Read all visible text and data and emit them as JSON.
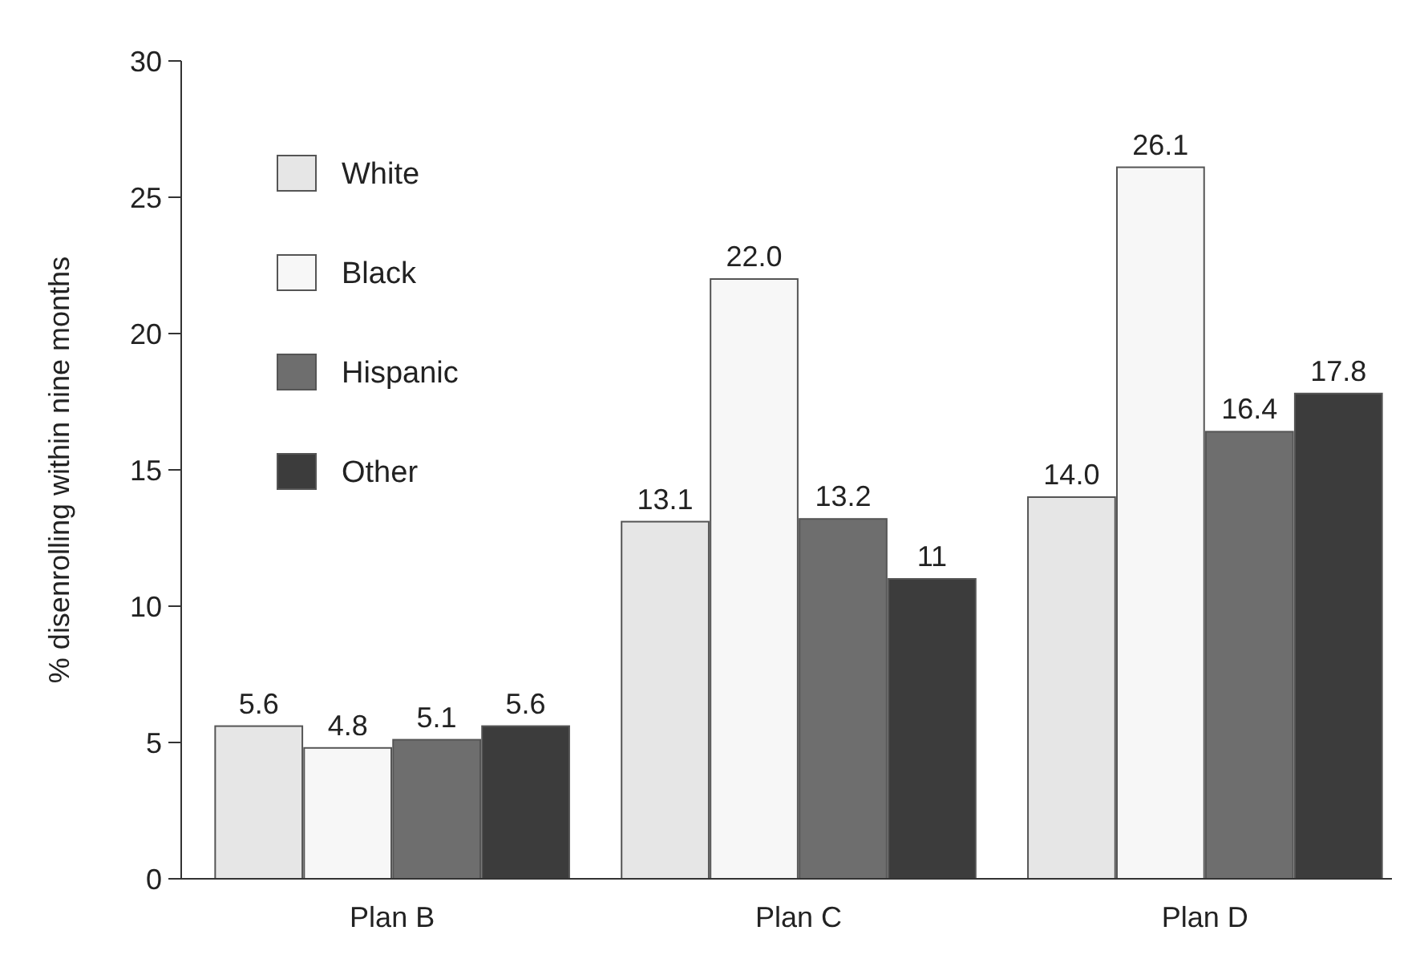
{
  "chart_data": {
    "type": "bar",
    "ylabel": "% disenrolling within nine months",
    "categories": [
      "Plan B",
      "Plan C",
      "Plan D"
    ],
    "series": [
      {
        "name": "White",
        "color": "#e6e6e6",
        "values": [
          5.6,
          13.1,
          14.0
        ],
        "value_labels": [
          "5.6",
          "13.1",
          "14.0"
        ]
      },
      {
        "name": "Black",
        "color": "#f7f7f7",
        "values": [
          4.8,
          22.0,
          26.1
        ],
        "value_labels": [
          "4.8",
          "22.0",
          "26.1"
        ]
      },
      {
        "name": "Hispanic",
        "color": "#6e6e6e",
        "values": [
          5.1,
          13.2,
          16.4
        ],
        "value_labels": [
          "5.1",
          "13.2",
          "16.4"
        ]
      },
      {
        "name": "Other",
        "color": "#3c3c3c",
        "values": [
          5.6,
          11,
          17.8
        ],
        "value_labels": [
          "5.6",
          "11",
          "17.8"
        ]
      }
    ],
    "ylim": [
      0,
      30
    ],
    "yticks": [
      0,
      5,
      10,
      15,
      20,
      25,
      30
    ],
    "grid": false,
    "legend": "top left"
  }
}
